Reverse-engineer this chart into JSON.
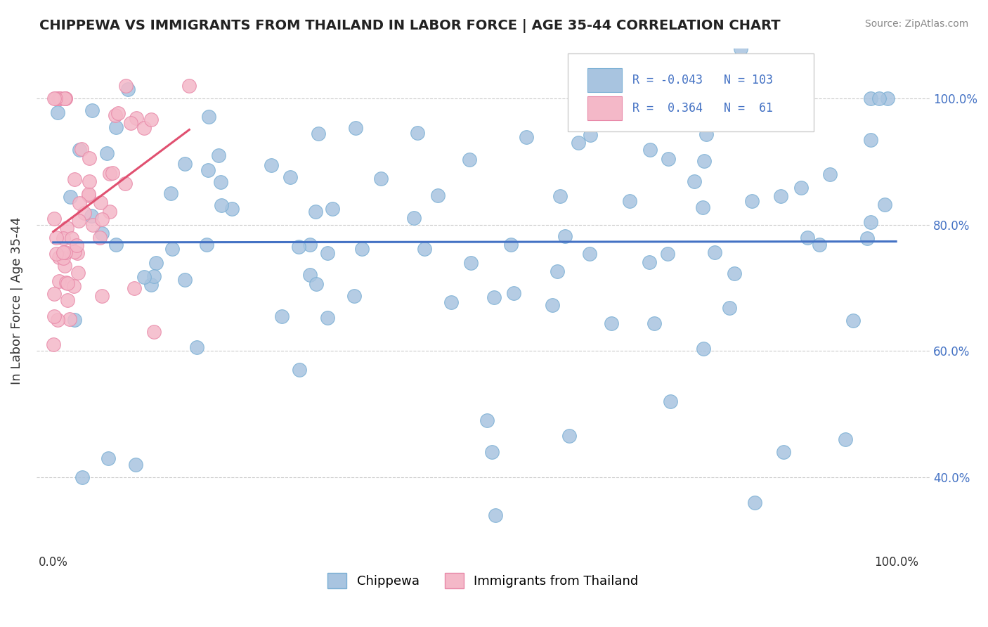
{
  "title": "CHIPPEWA VS IMMIGRANTS FROM THAILAND IN LABOR FORCE | AGE 35-44 CORRELATION CHART",
  "source": "Source: ZipAtlas.com",
  "ylabel": "In Labor Force | Age 35-44",
  "grid_color": "#cccccc",
  "chippewa_color": "#a8c4e0",
  "chippewa_edge": "#7aafd4",
  "thailand_color": "#f4b8c8",
  "thailand_edge": "#e888a8",
  "trend_blue": "#4472c4",
  "trend_pink": "#e05070",
  "R_blue": -0.043,
  "N_blue": 103,
  "R_pink": 0.364,
  "N_pink": 61,
  "tick_color": "#4472c4",
  "title_color": "#222222",
  "source_color": "#888888"
}
